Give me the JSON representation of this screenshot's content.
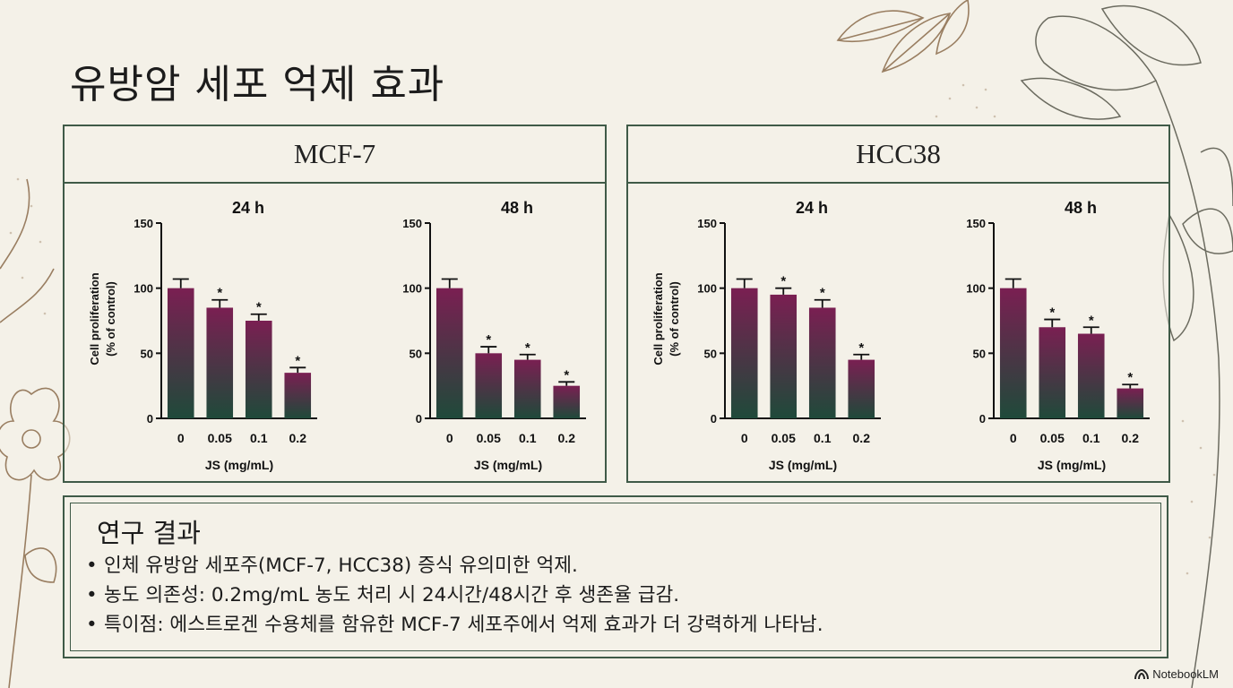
{
  "page_title": "유방암 세포 억제 효과",
  "brand": "NotebookLM",
  "bar_color_top": "#7a1f52",
  "bar_color_bottom": "#1f4a3a",
  "panels": [
    {
      "title": "MCF-7"
    },
    {
      "title": "HCC38"
    }
  ],
  "chart_data": [
    {
      "type": "bar",
      "cell_line": "MCF-7",
      "title": "24 h",
      "categories": [
        "0",
        "0.05",
        "0.1",
        "0.2"
      ],
      "values": [
        100,
        85,
        75,
        35
      ],
      "errors": [
        7,
        6,
        5,
        4
      ],
      "significance": [
        "",
        "*",
        "*",
        "*"
      ],
      "ylabel": "Cell proliferation\n(% of control)",
      "xlabel": "JS (mg/mL)",
      "ylim": [
        0,
        150
      ],
      "yticks": [
        0,
        50,
        100,
        150
      ]
    },
    {
      "type": "bar",
      "cell_line": "MCF-7",
      "title": "48 h",
      "categories": [
        "0",
        "0.05",
        "0.1",
        "0.2"
      ],
      "values": [
        100,
        50,
        45,
        25
      ],
      "errors": [
        7,
        5,
        4,
        3
      ],
      "significance": [
        "",
        "*",
        "*",
        "*"
      ],
      "ylabel": "",
      "xlabel": "JS (mg/mL)",
      "ylim": [
        0,
        150
      ],
      "yticks": [
        0,
        50,
        100,
        150
      ]
    },
    {
      "type": "bar",
      "cell_line": "HCC38",
      "title": "24 h",
      "categories": [
        "0",
        "0.05",
        "0.1",
        "0.2"
      ],
      "values": [
        100,
        95,
        85,
        45
      ],
      "errors": [
        7,
        5,
        6,
        4
      ],
      "significance": [
        "",
        "*",
        "*",
        "*"
      ],
      "ylabel": "Cell proliferation\n(% of control)",
      "xlabel": "JS (mg/mL)",
      "ylim": [
        0,
        150
      ],
      "yticks": [
        0,
        50,
        100,
        150
      ]
    },
    {
      "type": "bar",
      "cell_line": "HCC38",
      "title": "48 h",
      "categories": [
        "0",
        "0.05",
        "0.1",
        "0.2"
      ],
      "values": [
        100,
        70,
        65,
        23
      ],
      "errors": [
        7,
        6,
        5,
        3
      ],
      "significance": [
        "",
        "*",
        "*",
        "*"
      ],
      "ylabel": "",
      "xlabel": "JS (mg/mL)",
      "ylim": [
        0,
        150
      ],
      "yticks": [
        0,
        50,
        100,
        150
      ]
    }
  ],
  "results": {
    "title": "연구 결과",
    "bullet": "•",
    "items": [
      "인체 유방암 세포주(MCF-7, HCC38) 증식 유의미한 억제.",
      "농도 의존성: 0.2mg/mL 농도 처리 시 24시간/48시간 후 생존율 급감.",
      "특이점: 에스트로겐 수용체를 함유한 MCF-7 세포주에서 억제 효과가 더 강력하게 나타남."
    ]
  }
}
